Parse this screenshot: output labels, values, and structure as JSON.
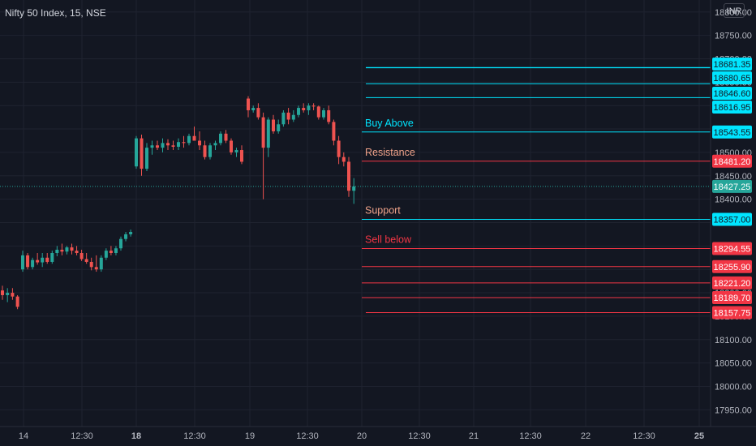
{
  "header": {
    "symbol": "Nifty 50 Index, 15, NSE",
    "currency": "INR"
  },
  "colors": {
    "background": "#131722",
    "grid": "#1f2330",
    "text": "#b2b5be",
    "up": "#26a69a",
    "down": "#ef5350",
    "cyan": "#00e5ff",
    "red_level": "#f23645",
    "orange_text": "#f0a38a",
    "last_price_line": "#26a69a"
  },
  "chart_data": {
    "type": "candlestick",
    "ylim": [
      17935,
      18810
    ],
    "y_ticks": [
      17950,
      18000,
      18050,
      18100,
      18150,
      18200,
      18250,
      18300,
      18350,
      18400,
      18450,
      18500,
      18550,
      18600,
      18650,
      18700,
      18750,
      18800
    ],
    "x_ticks": [
      "14",
      "12:30",
      "18",
      "12:30",
      "19",
      "12:30",
      "20",
      "12:30",
      "21",
      "12:30",
      "22",
      "12:30",
      "25"
    ],
    "x_ticks_bold": [
      "18",
      "25"
    ],
    "last_price": 18427.25,
    "candles": [
      [
        18205,
        18215,
        18185,
        18195
      ],
      [
        18195,
        18210,
        18180,
        18200
      ],
      [
        18200,
        18210,
        18185,
        18192
      ],
      [
        18192,
        18195,
        18165,
        18170
      ],
      [
        18250,
        18290,
        18245,
        18280
      ],
      [
        18280,
        18285,
        18250,
        18255
      ],
      [
        18255,
        18275,
        18250,
        18270
      ],
      [
        18270,
        18285,
        18260,
        18265
      ],
      [
        18265,
        18285,
        18255,
        18275
      ],
      [
        18275,
        18285,
        18262,
        18266
      ],
      [
        18266,
        18290,
        18262,
        18285
      ],
      [
        18285,
        18300,
        18278,
        18292
      ],
      [
        18292,
        18305,
        18280,
        18288
      ],
      [
        18288,
        18300,
        18282,
        18297
      ],
      [
        18297,
        18305,
        18282,
        18290
      ],
      [
        18290,
        18300,
        18280,
        18285
      ],
      [
        18285,
        18292,
        18268,
        18272
      ],
      [
        18272,
        18285,
        18262,
        18266
      ],
      [
        18266,
        18275,
        18248,
        18255
      ],
      [
        18255,
        18280,
        18245,
        18250
      ],
      [
        18250,
        18280,
        18245,
        18275
      ],
      [
        18275,
        18295,
        18270,
        18290
      ],
      [
        18290,
        18300,
        18280,
        18285
      ],
      [
        18285,
        18300,
        18280,
        18295
      ],
      [
        18295,
        18320,
        18290,
        18315
      ],
      [
        18315,
        18330,
        18310,
        18325
      ],
      [
        18325,
        18335,
        18320,
        18330
      ],
      [
        18470,
        18535,
        18465,
        18530
      ],
      [
        18530,
        18538,
        18450,
        18465
      ],
      [
        18465,
        18520,
        18460,
        18510
      ],
      [
        18510,
        18525,
        18495,
        18515
      ],
      [
        18515,
        18525,
        18505,
        18510
      ],
      [
        18510,
        18530,
        18500,
        18520
      ],
      [
        18520,
        18528,
        18505,
        18515
      ],
      [
        18515,
        18525,
        18505,
        18512
      ],
      [
        18512,
        18530,
        18505,
        18522
      ],
      [
        18522,
        18535,
        18510,
        18520
      ],
      [
        18520,
        18540,
        18515,
        18535
      ],
      [
        18535,
        18555,
        18530,
        18525
      ],
      [
        18525,
        18545,
        18505,
        18515
      ],
      [
        18515,
        18525,
        18485,
        18490
      ],
      [
        18490,
        18520,
        18485,
        18515
      ],
      [
        18515,
        18525,
        18505,
        18520
      ],
      [
        18520,
        18545,
        18515,
        18540
      ],
      [
        18540,
        18548,
        18520,
        18525
      ],
      [
        18525,
        18530,
        18495,
        18500
      ],
      [
        18500,
        18510,
        18490,
        18505
      ],
      [
        18505,
        18515,
        18475,
        18480
      ],
      [
        18615,
        18620,
        18575,
        18590
      ],
      [
        18590,
        18600,
        18585,
        18595
      ],
      [
        18595,
        18605,
        18570,
        18575
      ],
      [
        18575,
        18585,
        18400,
        18510
      ],
      [
        18510,
        18575,
        18490,
        18570
      ],
      [
        18570,
        18580,
        18540,
        18545
      ],
      [
        18545,
        18570,
        18540,
        18560
      ],
      [
        18560,
        18590,
        18555,
        18585
      ],
      [
        18585,
        18595,
        18560,
        18570
      ],
      [
        18570,
        18590,
        18565,
        18580
      ],
      [
        18580,
        18600,
        18575,
        18595
      ],
      [
        18595,
        18605,
        18585,
        18590
      ],
      [
        18590,
        18605,
        18580,
        18600
      ],
      [
        18600,
        18605,
        18590,
        18598
      ],
      [
        18598,
        18600,
        18570,
        18575
      ],
      [
        18575,
        18595,
        18570,
        18590
      ],
      [
        18590,
        18600,
        18560,
        18565
      ],
      [
        18565,
        18570,
        18515,
        18525
      ],
      [
        18525,
        18535,
        18475,
        18490
      ],
      [
        18490,
        18500,
        18470,
        18480
      ],
      [
        18480,
        18490,
        18405,
        18418
      ],
      [
        18418,
        18445,
        18390,
        18427
      ]
    ],
    "levels": [
      {
        "price": 18681.35,
        "label": "18681.35",
        "kind": "cyan",
        "line_from": 451
      },
      {
        "price": 18680.65,
        "label": "18680.65",
        "kind": "cyan",
        "line_from": 451
      },
      {
        "price": 18646.6,
        "label": "18646.60",
        "kind": "cyan",
        "line_from": 451
      },
      {
        "price": 18616.95,
        "label": "18616.95",
        "kind": "cyan",
        "line_from": 451
      },
      {
        "price": 18543.55,
        "label": "18543.55",
        "kind": "cyan",
        "line_from": 446
      },
      {
        "price": 18481.2,
        "label": "18481.20",
        "kind": "red",
        "line_from": 446
      },
      {
        "price": 18357.0,
        "label": "18357.00",
        "kind": "cyan",
        "line_from": 446
      },
      {
        "price": 18294.55,
        "label": "18294.55",
        "kind": "red",
        "line_from": 446
      },
      {
        "price": 18255.9,
        "label": "18255.90",
        "kind": "red",
        "line_from": 446
      },
      {
        "price": 18221.2,
        "label": "18221.20",
        "kind": "red",
        "line_from": 446
      },
      {
        "price": 18189.7,
        "label": "18189.70",
        "kind": "red",
        "line_from": 446
      },
      {
        "price": 18157.75,
        "label": "18157.75",
        "kind": "red",
        "line_from": 451
      }
    ],
    "annotations": [
      {
        "text": "Buy Above",
        "price": 18543.55,
        "color": "cyan"
      },
      {
        "text": "Resistance",
        "price": 18481.2,
        "color": "orange_text"
      },
      {
        "text": "Support",
        "price": 18357.0,
        "color": "orange_text"
      },
      {
        "text": "Sell below",
        "price": 18294.55,
        "color": "red_level"
      }
    ]
  }
}
